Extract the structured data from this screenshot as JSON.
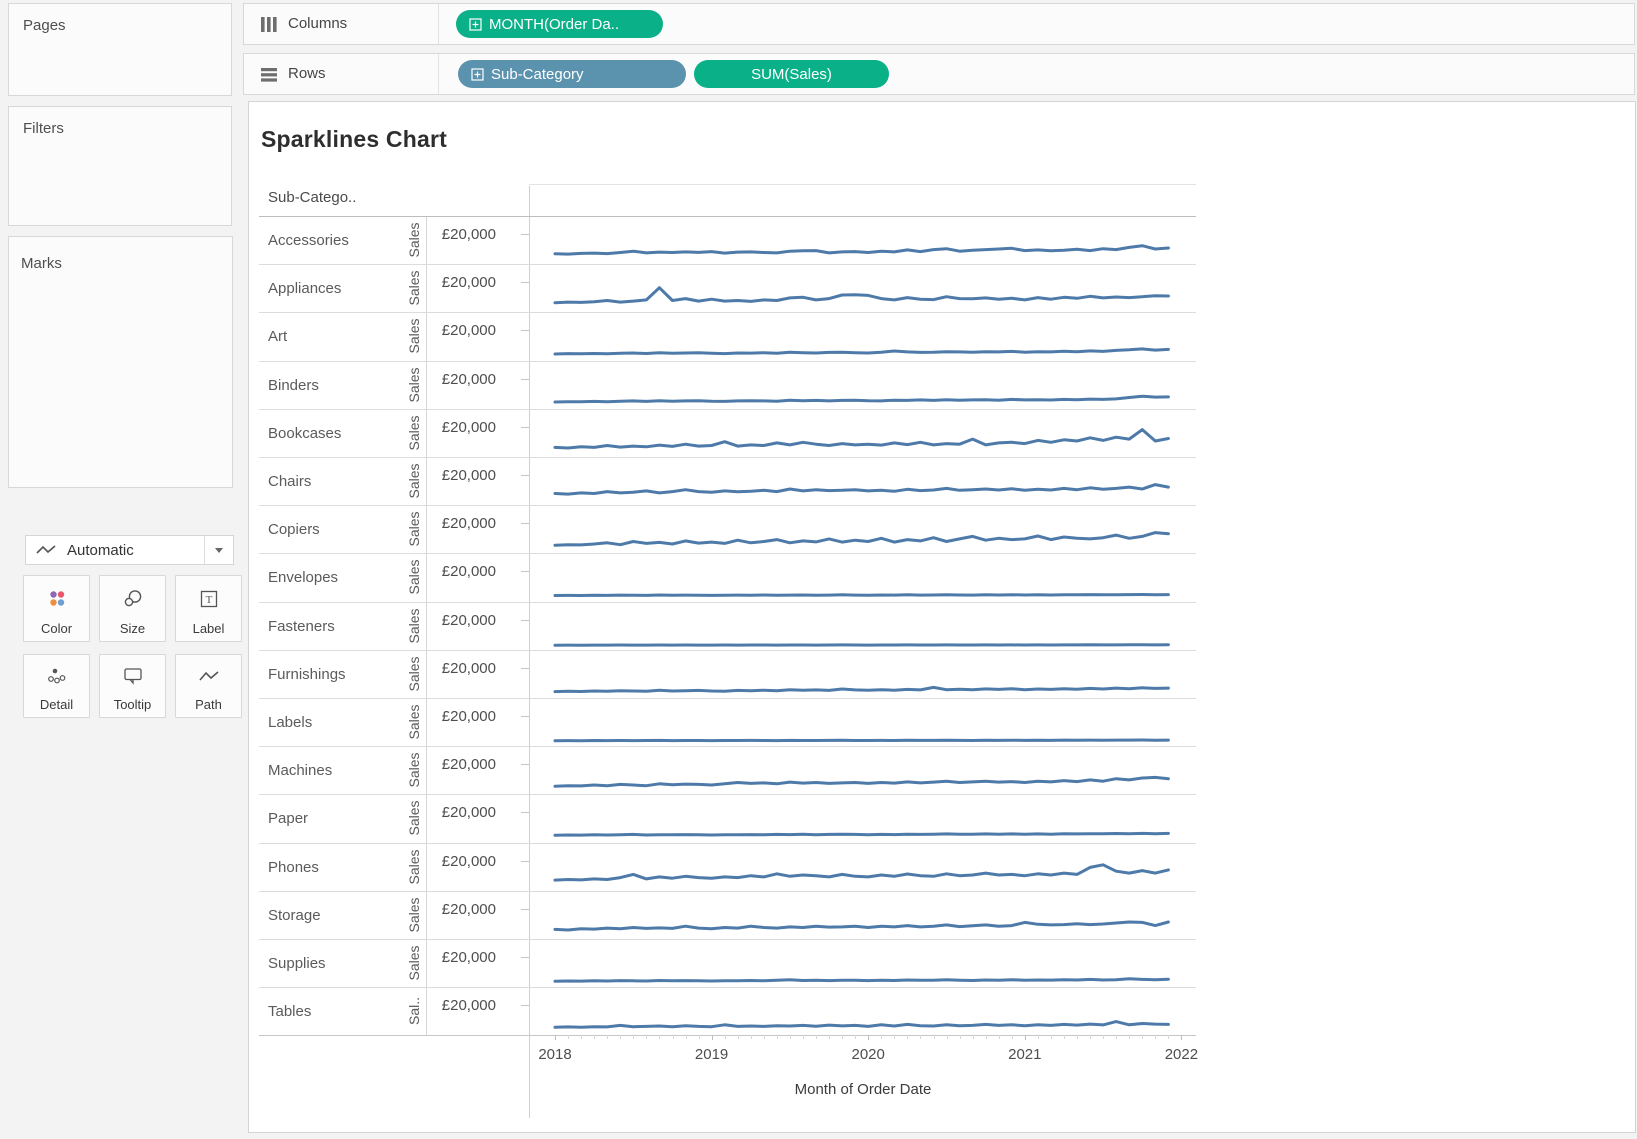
{
  "panels": {
    "pages": {
      "title": "Pages"
    },
    "filters": {
      "title": "Filters"
    },
    "marks": {
      "title": "Marks",
      "mark_type_selector": {
        "label": "Automatic"
      },
      "buttons": [
        {
          "label": "Color"
        },
        {
          "label": "Size"
        },
        {
          "label": "Label"
        },
        {
          "label": "Detail"
        },
        {
          "label": "Tooltip"
        },
        {
          "label": "Path"
        }
      ]
    }
  },
  "shelves": {
    "columns": {
      "label": "Columns",
      "pills": [
        {
          "label": "MONTH(Order Da..",
          "color": "green",
          "expand_icon": true
        }
      ]
    },
    "rows": {
      "label": "Rows",
      "pills": [
        {
          "label": "Sub-Category",
          "color": "blue",
          "expand_icon": true
        },
        {
          "label": "SUM(Sales)",
          "color": "green",
          "expand_icon": false
        }
      ]
    }
  },
  "sheet": {
    "title": "Sparklines Chart",
    "row_header": "Sub-Catego..",
    "y_axis_tick_label": "£20,000",
    "axis_field_label": "Sales",
    "axis_field_label_truncated": "Sal..",
    "x_axis_title": "Month of Order Date",
    "x_tick_labels": [
      "2018",
      "2019",
      "2020",
      "2021",
      "2022"
    ]
  },
  "chart_data": {
    "type": "line",
    "title": "Sparklines Chart",
    "xlabel": "Month of Order Date",
    "x_unit": "month",
    "x_range": [
      "2018-01",
      "2021-12"
    ],
    "x_tick_labels": [
      "2018",
      "2019",
      "2020",
      "2021",
      "2022"
    ],
    "categories_axis": "Sub-Category",
    "y_gridline_value": 20000,
    "y_tick_label": "£20,000",
    "ylim": [
      0,
      22000
    ],
    "currency": "GBP",
    "legend": "none",
    "series": [
      {
        "name": "Accessories",
        "values": [
          4500,
          4200,
          4800,
          5000,
          4600,
          5500,
          6500,
          5200,
          5800,
          5500,
          6000,
          5600,
          6200,
          5000,
          5800,
          6000,
          5500,
          5200,
          6500,
          6800,
          7000,
          5200,
          6000,
          6200,
          5500,
          6500,
          6000,
          7500,
          6200,
          7800,
          8500,
          6500,
          7200,
          7800,
          8200,
          8800,
          7000,
          7500,
          6800,
          7200,
          8000,
          7000,
          8500,
          7800,
          9500,
          10800,
          8200,
          9000
        ]
      },
      {
        "name": "Appliances",
        "values": [
          3800,
          4200,
          4000,
          4500,
          5500,
          4200,
          5000,
          6000,
          15500,
          5500,
          7000,
          5000,
          6500,
          5000,
          5500,
          4800,
          6000,
          5500,
          7500,
          8000,
          6000,
          7000,
          9800,
          10000,
          9500,
          7000,
          6000,
          7800,
          6500,
          6200,
          8500,
          7000,
          6800,
          7500,
          6500,
          7200,
          6000,
          7800,
          6500,
          8000,
          7200,
          8800,
          7500,
          8200,
          7800,
          8500,
          9200,
          9000
        ]
      },
      {
        "name": "Art",
        "values": [
          1200,
          1500,
          1300,
          1600,
          1400,
          1800,
          2000,
          1600,
          2200,
          1800,
          2000,
          2100,
          1800,
          1500,
          2000,
          1900,
          2200,
          1800,
          2500,
          2200,
          2000,
          2400,
          2600,
          2200,
          2000,
          2500,
          3500,
          2800,
          2400,
          2600,
          3000,
          2800,
          2500,
          3000,
          2800,
          3200,
          2600,
          3000,
          2800,
          3400,
          3000,
          3600,
          3200,
          4000,
          4500,
          5200,
          4200,
          4800
        ]
      },
      {
        "name": "Binders",
        "values": [
          2000,
          2200,
          2100,
          2400,
          2200,
          2600,
          2800,
          2400,
          3000,
          2600,
          2800,
          3000,
          2600,
          2400,
          2800,
          3000,
          2800,
          2600,
          3400,
          3000,
          3200,
          2800,
          3200,
          3400,
          3000,
          2800,
          3400,
          3200,
          3600,
          3200,
          3800,
          3400,
          3600,
          3800,
          3400,
          4000,
          3600,
          3800,
          3500,
          4000,
          3800,
          4200,
          4000,
          4400,
          5500,
          6500,
          5800,
          6000
        ]
      },
      {
        "name": "Bookcases",
        "values": [
          4000,
          3500,
          4500,
          4000,
          5500,
          4200,
          5000,
          4500,
          5800,
          4800,
          6500,
          5000,
          5500,
          8500,
          5000,
          6000,
          5500,
          7500,
          6000,
          8000,
          6500,
          5500,
          7000,
          6000,
          6500,
          5800,
          7500,
          6200,
          8000,
          6000,
          7000,
          6500,
          10500,
          6000,
          7500,
          8000,
          7000,
          9500,
          8000,
          10000,
          9000,
          11500,
          9500,
          12000,
          10500,
          18000,
          9000,
          11000
        ]
      },
      {
        "name": "Chairs",
        "values": [
          5500,
          5000,
          6000,
          5500,
          7000,
          6000,
          6500,
          7500,
          6000,
          7000,
          8500,
          7000,
          6500,
          7500,
          6800,
          7200,
          8000,
          7000,
          9000,
          7500,
          8500,
          7800,
          8000,
          8500,
          7500,
          8000,
          7200,
          8800,
          7800,
          8200,
          9500,
          8000,
          8500,
          9000,
          8200,
          9200,
          8000,
          8800,
          8200,
          9500,
          8500,
          10000,
          8800,
          9500,
          10500,
          9000,
          12500,
          10500
        ]
      },
      {
        "name": "Copiers",
        "values": [
          2500,
          3000,
          2800,
          3500,
          4500,
          3000,
          5500,
          4000,
          4800,
          3500,
          6000,
          4200,
          5000,
          4000,
          6500,
          4500,
          5500,
          7000,
          4500,
          6000,
          5200,
          7500,
          5000,
          6500,
          5500,
          8000,
          5000,
          7000,
          6000,
          8500,
          5500,
          7500,
          9500,
          6500,
          8000,
          7000,
          7500,
          9800,
          7000,
          9000,
          8000,
          7500,
          8500,
          10500,
          8000,
          9500,
          12500,
          11500
        ]
      },
      {
        "name": "Envelopes",
        "values": [
          800,
          900,
          800,
          1000,
          900,
          1100,
          1000,
          900,
          1200,
          1000,
          1100,
          1000,
          900,
          1000,
          1100,
          1000,
          1200,
          1000,
          1100,
          1200,
          1000,
          1100,
          1300,
          1100,
          1000,
          1200,
          1100,
          1300,
          1100,
          1200,
          1400,
          1200,
          1100,
          1300,
          1200,
          1400,
          1200,
          1300,
          1200,
          1400,
          1300,
          1500,
          1300,
          1400,
          1500,
          1600,
          1400,
          1500
        ]
      },
      {
        "name": "Fasteners",
        "values": [
          200,
          300,
          200,
          300,
          300,
          400,
          300,
          300,
          400,
          300,
          400,
          300,
          300,
          400,
          300,
          400,
          400,
          300,
          400,
          400,
          300,
          400,
          500,
          400,
          300,
          400,
          400,
          500,
          400,
          400,
          500,
          400,
          400,
          500,
          400,
          500,
          400,
          500,
          400,
          500,
          500,
          600,
          500,
          500,
          600,
          600,
          500,
          600
        ]
      },
      {
        "name": "Furnishings",
        "values": [
          1500,
          1800,
          1600,
          2000,
          1800,
          2200,
          2000,
          1800,
          2500,
          2000,
          2200,
          2400,
          2000,
          1800,
          2400,
          2200,
          2600,
          2200,
          3000,
          2500,
          2800,
          2400,
          3500,
          2800,
          2500,
          3000,
          2600,
          3200,
          2800,
          4800,
          3000,
          3400,
          3000,
          3600,
          3200,
          3800,
          3000,
          3500,
          3200,
          3800,
          3400,
          4000,
          3500,
          4200,
          3800,
          4500,
          4000,
          4200
        ]
      },
      {
        "name": "Labels",
        "values": [
          600,
          700,
          600,
          800,
          700,
          800,
          700,
          800,
          900,
          700,
          800,
          800,
          700,
          800,
          800,
          900,
          800,
          700,
          900,
          800,
          800,
          900,
          1000,
          800,
          800,
          900,
          800,
          1000,
          900,
          900,
          1000,
          900,
          800,
          1000,
          900,
          1000,
          900,
          1000,
          900,
          1100,
          1000,
          1100,
          1000,
          1100,
          1100,
          1200,
          1000,
          1100
        ]
      },
      {
        "name": "Machines",
        "values": [
          2500,
          3000,
          2800,
          3500,
          3000,
          4000,
          3500,
          3000,
          4500,
          3800,
          4200,
          4000,
          3500,
          4500,
          5500,
          4800,
          5200,
          4500,
          5800,
          5000,
          5500,
          4800,
          5200,
          5500,
          4800,
          5500,
          5000,
          6000,
          5200,
          5800,
          6500,
          5500,
          6000,
          6500,
          5800,
          6200,
          5500,
          6500,
          6000,
          7000,
          6200,
          7500,
          6500,
          8500,
          7500,
          9000,
          9500,
          8500
        ]
      },
      {
        "name": "Paper",
        "values": [
          1800,
          2000,
          1900,
          2100,
          2000,
          2200,
          2400,
          2000,
          2200,
          2100,
          2300,
          2200,
          2000,
          2200,
          2100,
          2300,
          2200,
          2400,
          2300,
          2500,
          2200,
          2400,
          2600,
          2400,
          2200,
          2400,
          2300,
          2500,
          2400,
          2600,
          2800,
          2500,
          2600,
          2800,
          2600,
          2800,
          2500,
          2800,
          2600,
          3000,
          2800,
          3000,
          2900,
          3100,
          3000,
          3200,
          3000,
          3200
        ]
      },
      {
        "name": "Phones",
        "values": [
          5000,
          5500,
          5200,
          6000,
          5500,
          7000,
          9500,
          6000,
          7500,
          6500,
          8000,
          7000,
          6500,
          7500,
          7000,
          8500,
          7500,
          10000,
          8000,
          9000,
          8500,
          7500,
          9500,
          8000,
          7500,
          9000,
          8000,
          9800,
          8500,
          8000,
          10000,
          8500,
          9000,
          10500,
          9000,
          9500,
          8500,
          10000,
          9000,
          10500,
          9500,
          15000,
          17000,
          12000,
          10500,
          12500,
          10500,
          13000
        ]
      },
      {
        "name": "Storage",
        "values": [
          4000,
          3500,
          4500,
          4200,
          5000,
          4500,
          5500,
          4800,
          5200,
          4800,
          6500,
          5000,
          4500,
          5500,
          5000,
          6500,
          5500,
          5000,
          6000,
          5500,
          6500,
          5800,
          6000,
          6500,
          5500,
          6500,
          6000,
          7000,
          6000,
          6500,
          7500,
          6200,
          6800,
          7500,
          6500,
          7000,
          9500,
          8000,
          7500,
          7800,
          8500,
          7800,
          8200,
          9000,
          9800,
          9500,
          7000,
          9800
        ]
      },
      {
        "name": "Supplies",
        "values": [
          1000,
          1200,
          1100,
          1400,
          1200,
          1500,
          1300,
          1200,
          1600,
          1300,
          1500,
          1400,
          1200,
          1400,
          1300,
          1600,
          1400,
          1800,
          2200,
          1600,
          1800,
          1500,
          1700,
          1800,
          1500,
          1800,
          1600,
          2000,
          1700,
          1800,
          2200,
          1800,
          1600,
          2000,
          1800,
          2200,
          1800,
          2000,
          1900,
          2200,
          2000,
          2400,
          2000,
          2200,
          3000,
          2400,
          2200,
          2600
        ]
      },
      {
        "name": "Tables",
        "values": [
          2500,
          2800,
          2600,
          3000,
          2800,
          4000,
          3000,
          3200,
          3500,
          3000,
          3800,
          3200,
          3000,
          4500,
          3200,
          3500,
          3200,
          3800,
          3500,
          4000,
          3400,
          4200,
          3600,
          4000,
          3200,
          4500,
          3500,
          4800,
          3800,
          3500,
          4500,
          3800,
          4000,
          4800,
          4000,
          4500,
          3800,
          4500,
          4000,
          4800,
          4200,
          5000,
          4400,
          7000,
          4500,
          5500,
          5000,
          4800
        ]
      }
    ]
  },
  "colors": {
    "pill_green": "#0ab087",
    "pill_blue": "#5b93ae",
    "sparkline": "#4d7aa8",
    "mark_color_dots": [
      "#8b67b5",
      "#e8576b",
      "#ef8e3e",
      "#6d9fd3"
    ]
  }
}
